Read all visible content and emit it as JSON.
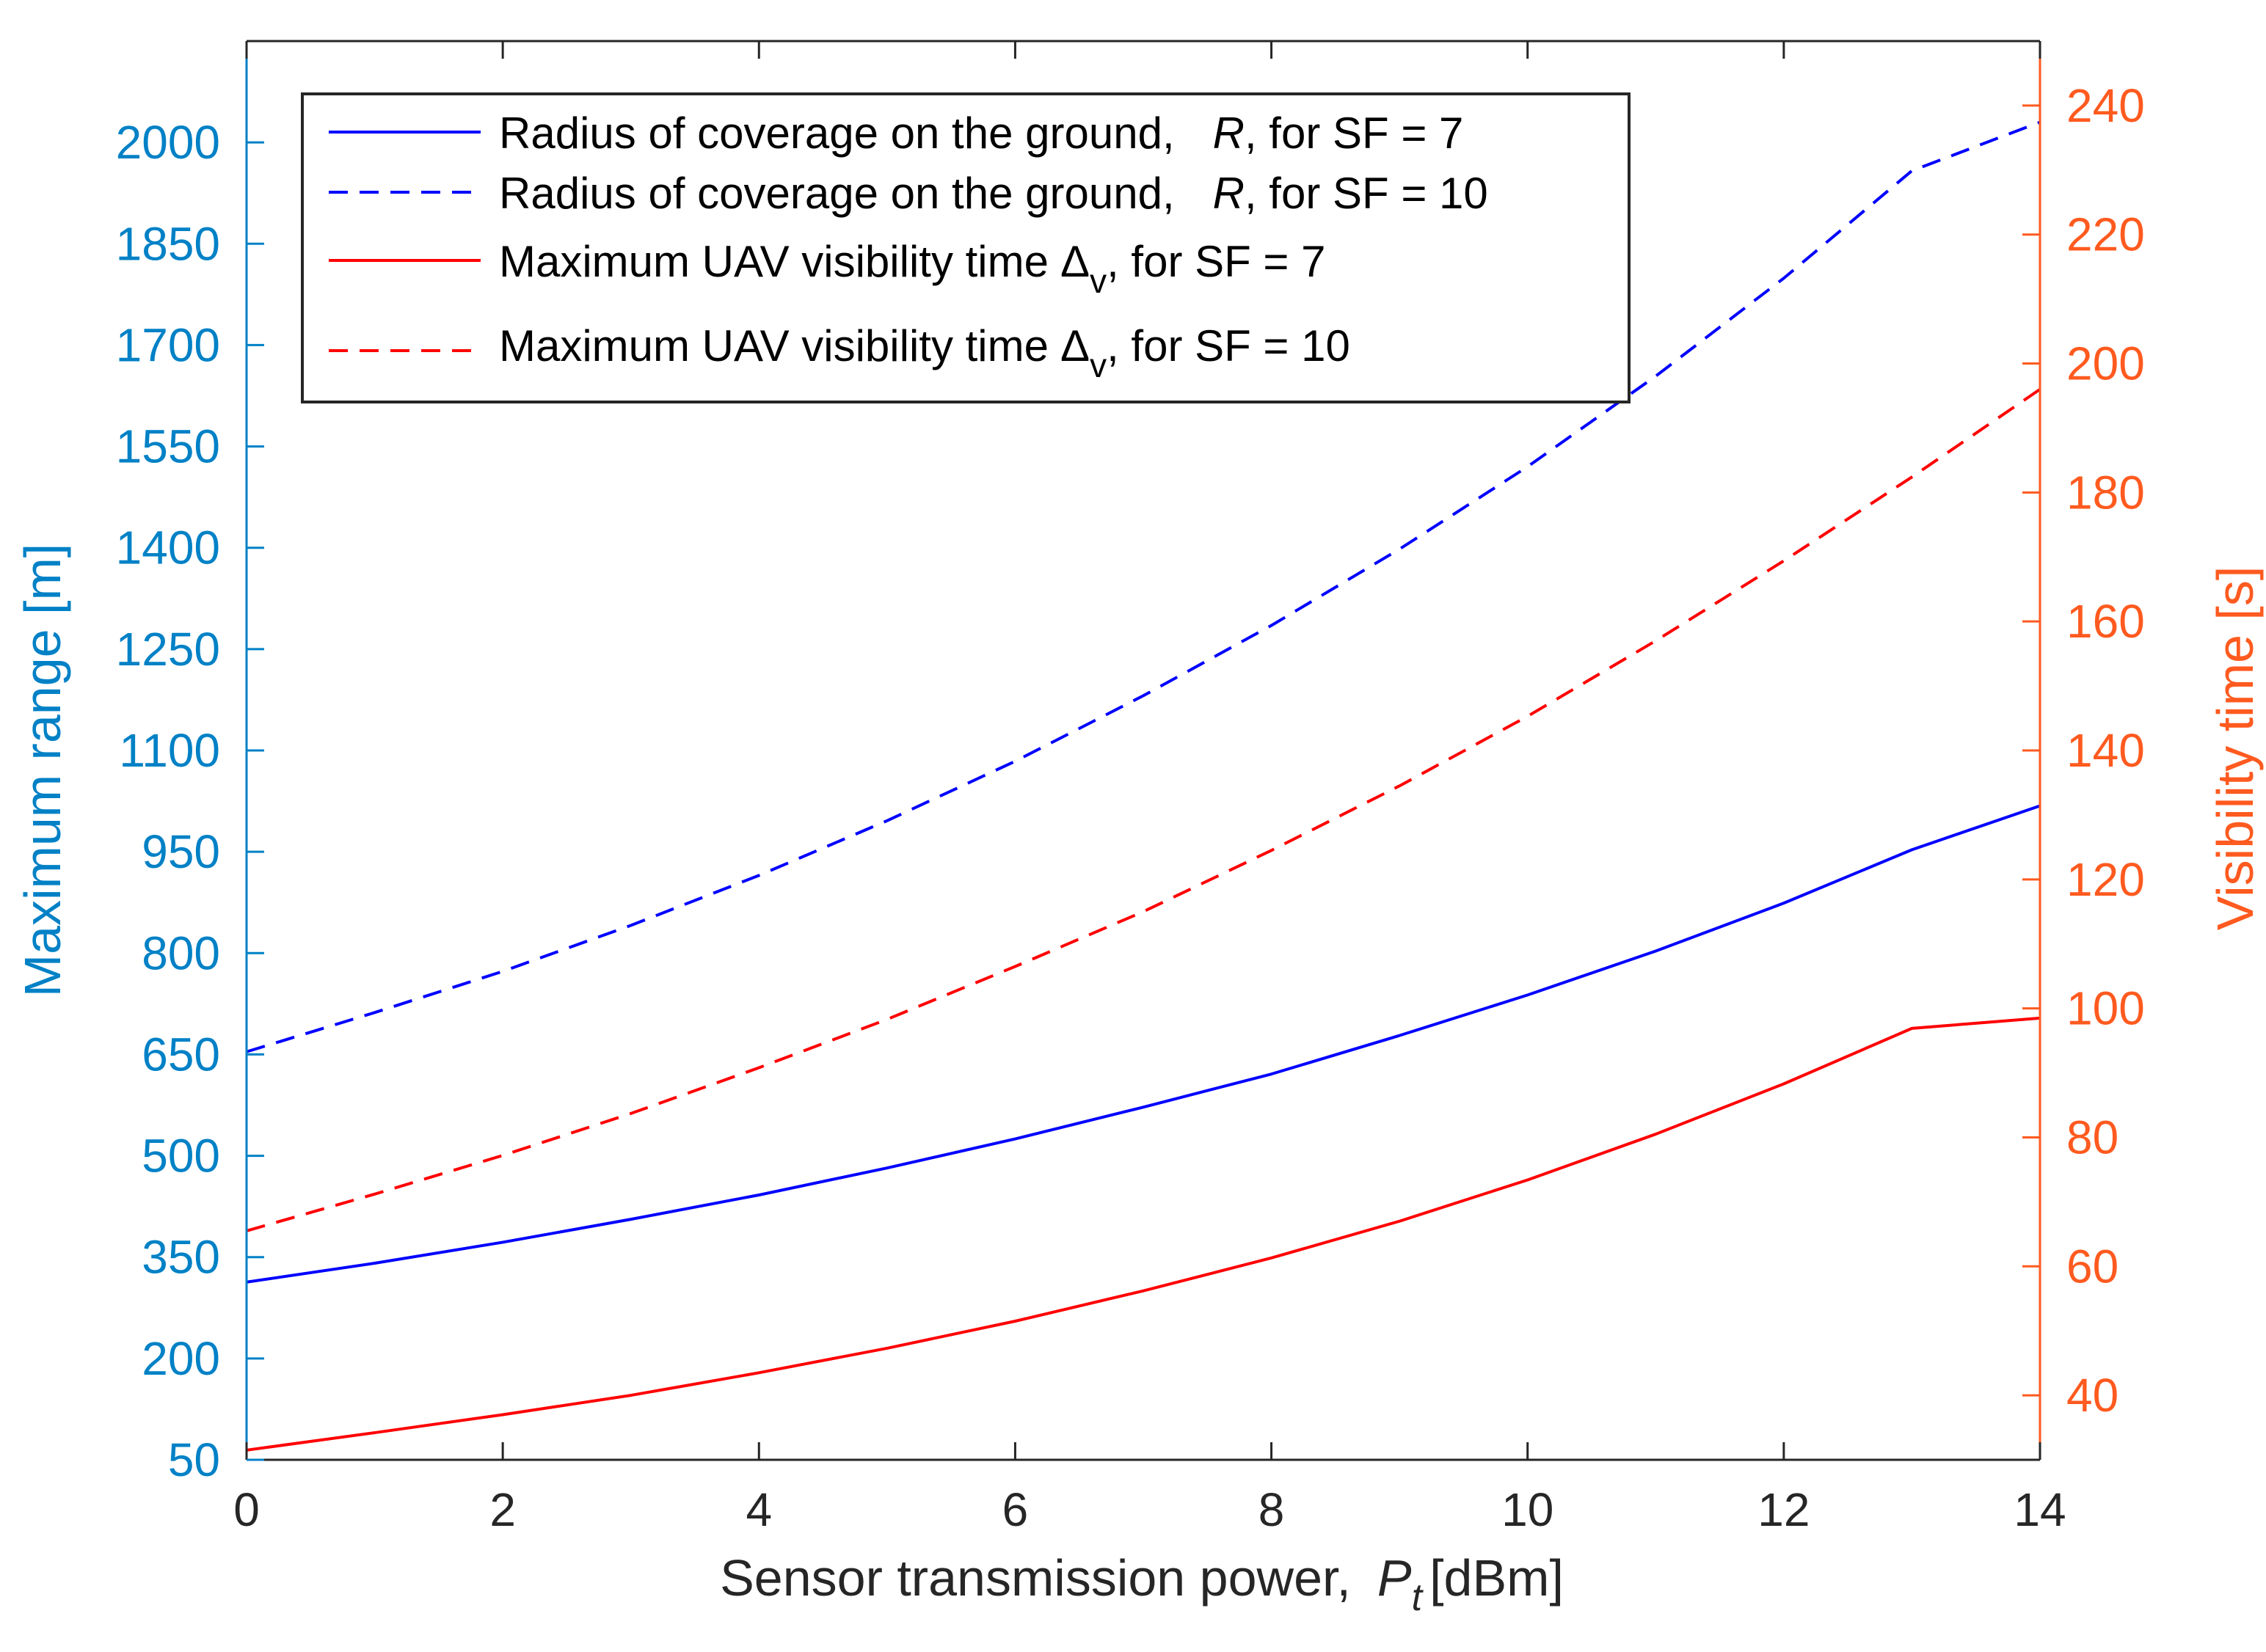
{
  "chart_data": {
    "type": "line",
    "x": [
      0,
      1,
      2,
      3,
      4,
      5,
      6,
      7,
      8,
      9,
      10,
      11,
      12,
      13,
      14
    ],
    "xlabel_prefix": "Sensor transmission power,",
    "xlabel_symbol": "P",
    "xlabel_subscript": "t",
    "xlabel_unit": "[dBm]",
    "xlim": [
      0,
      14
    ],
    "xticks": [
      "0",
      "2",
      "4",
      "6",
      "8",
      "10",
      "12",
      "14"
    ],
    "ylabel_left": "Maximum range [m]",
    "ylim_left": [
      50,
      2150
    ],
    "yticks_left": [
      "50",
      "200",
      "350",
      "500",
      "650",
      "800",
      "950",
      "1100",
      "1250",
      "1400",
      "1550",
      "1700",
      "1850",
      "2000"
    ],
    "ylabel_right": "Visibility time [s]",
    "ylim_right": [
      30,
      250
    ],
    "yticks_right": [
      "40",
      "60",
      "80",
      "100",
      "120",
      "140",
      "160",
      "180",
      "200",
      "220",
      "240"
    ],
    "series": [
      {
        "name": "Radius of coverage on the ground, R, for SF = 7",
        "axis": "left",
        "style": "solid",
        "color": "#0000ff",
        "values": [
          313,
          341,
          372,
          406,
          442,
          482,
          525,
          572,
          621,
          678,
          738,
          803,
          874,
          953,
          1018
        ]
      },
      {
        "name": "Radius of coverage on the ground, R, for SF = 10",
        "axis": "left",
        "style": "dashed",
        "color": "#0000ff",
        "values": [
          654,
          712,
          773,
          841,
          915,
          996,
          1084,
          1181,
          1285,
          1398,
          1520,
          1654,
          1799,
          1958,
          2030
        ]
      },
      {
        "name": "Maximum UAV visibility time Δv, for SF = 7",
        "axis": "right",
        "style": "solid",
        "color": "#ff0000",
        "values": [
          31.5,
          34.2,
          37.0,
          40.0,
          43.5,
          47.3,
          51.5,
          56.2,
          61.3,
          67.0,
          73.4,
          80.5,
          88.3,
          96.9,
          98.5
        ]
      },
      {
        "name": "Maximum UAV visibility time Δv, for SF = 10",
        "axis": "right",
        "style": "dashed",
        "color": "#ff0000",
        "values": [
          65.5,
          71.2,
          77.2,
          83.7,
          90.8,
          98.3,
          106.5,
          115.0,
          124.5,
          134.5,
          145.3,
          157.0,
          169.4,
          182.4,
          196.0
        ]
      }
    ],
    "legend": {
      "placement": "top-left",
      "entries": [
        {
          "prefix": "Radius of coverage on the ground,",
          "symbol": "R",
          "suffix": ", for SF = 7"
        },
        {
          "prefix": "Radius of coverage on the ground,",
          "symbol": "R",
          "suffix": ", for SF = 10"
        },
        {
          "prefix": "Maximum UAV visibility time",
          "symbol": "Δ",
          "subscript": "v",
          "suffix": ", for SF = 7"
        },
        {
          "prefix": "Maximum UAV visibility time",
          "symbol": "Δ",
          "subscript": "v",
          "suffix": ", for SF = 10"
        }
      ]
    },
    "grid": false
  },
  "colors": {
    "left_axis": "#0081c6",
    "right_axis": "#ff5a1f",
    "series_blue": "#0000ff",
    "series_red": "#ff0000",
    "frame": "#262626"
  }
}
